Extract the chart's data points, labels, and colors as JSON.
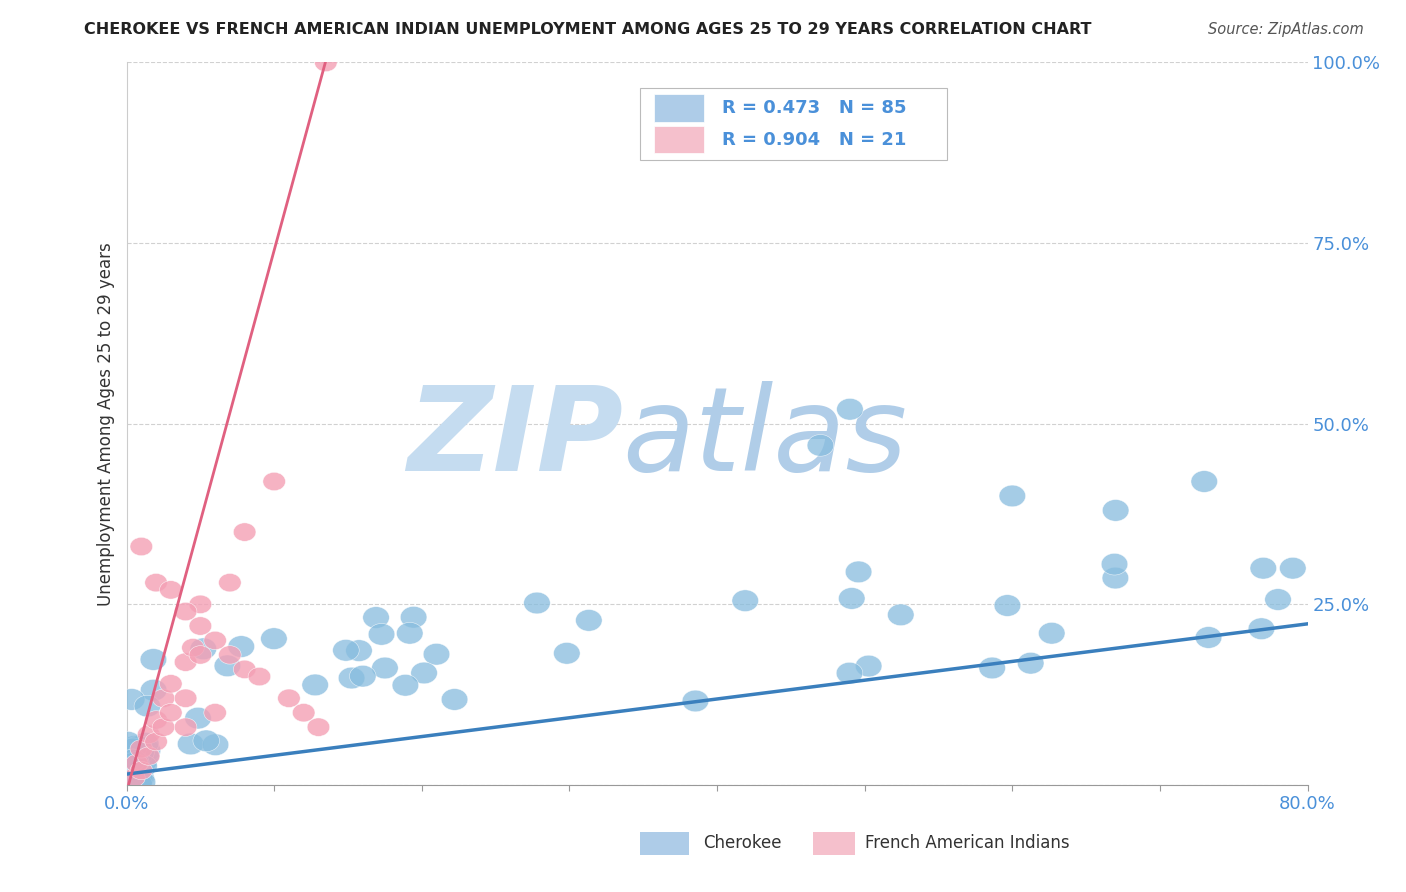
{
  "title": "CHEROKEE VS FRENCH AMERICAN INDIAN UNEMPLOYMENT AMONG AGES 25 TO 29 YEARS CORRELATION CHART",
  "source": "Source: ZipAtlas.com",
  "ylabel": "Unemployment Among Ages 25 to 29 years",
  "xlim": [
    0.0,
    0.8
  ],
  "ylim": [
    0.0,
    1.0
  ],
  "xticks": [
    0.0,
    0.1,
    0.2,
    0.3,
    0.4,
    0.5,
    0.6,
    0.7,
    0.8
  ],
  "xticklabels": [
    "0.0%",
    "",
    "",
    "",
    "",
    "",
    "",
    "",
    "80.0%"
  ],
  "yticks": [
    0.0,
    0.25,
    0.5,
    0.75,
    1.0
  ],
  "yticklabels": [
    "",
    "25.0%",
    "50.0%",
    "75.0%",
    "100.0%"
  ],
  "cherokee_R": 0.473,
  "cherokee_N": 85,
  "french_R": 0.904,
  "french_N": 21,
  "cherokee_color": "#87BCDE",
  "french_color": "#F4A0B5",
  "cherokee_line_color": "#3A7FBD",
  "french_line_color": "#E06080",
  "legend_box_color_cherokee": "#AECCE8",
  "legend_box_color_french": "#F5C0CC",
  "watermark_zip": "ZIP",
  "watermark_atlas": "atlas",
  "watermark_color_zip": "#C5DCF0",
  "watermark_color_atlas": "#B0CDE8",
  "background_color": "#ffffff",
  "grid_color": "#cccccc",
  "title_color": "#222222",
  "source_color": "#555555",
  "ylabel_color": "#333333",
  "ytick_color": "#4a90d9",
  "xtick_color": "#4a90d9",
  "legend_text_color": "#4a90d9",
  "cherokee_line_intercept": 0.015,
  "cherokee_line_slope": 0.26,
  "french_line_intercept": -0.01,
  "french_line_slope": 7.5
}
